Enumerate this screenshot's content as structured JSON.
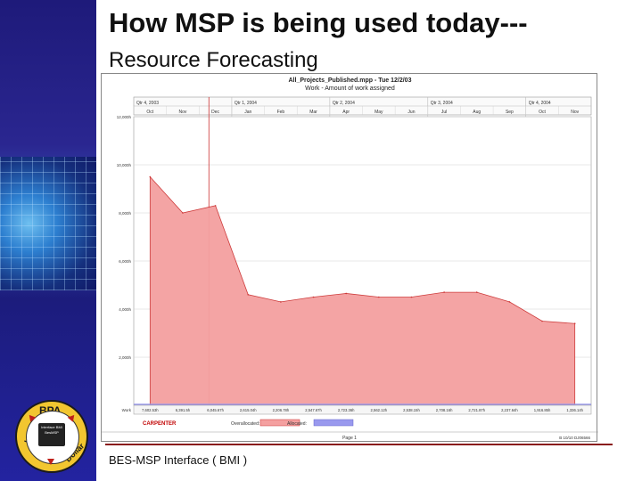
{
  "slide": {
    "title": "How MSP is being used today---",
    "subtitle": "Resource Forecasting",
    "footer": "BES-MSP Interface   ( BMI )"
  },
  "logo": {
    "top": "BPA",
    "left": "Indus",
    "right": "Dollar",
    "center": "Interface BMI BesMSP"
  },
  "colors": {
    "sidebar": "#1e1a7a",
    "area_fill": "#f4a0a0",
    "area_stroke": "#cc3333",
    "allocated_fill": "#9999ee",
    "rule": "#8a1c1c"
  },
  "chart_window": {
    "title": "All_Projects_Published.mpp - Tue 12/2/03",
    "subtitle": "Work - Amount of work assigned",
    "legend_resource": "CARPENTER",
    "legend_overallocated": "Overallocated:",
    "legend_allocated": "Allocated:",
    "footer_page": "Page 1",
    "footer_code": "B 10/10 DJ06566",
    "units_label": "Work"
  },
  "chart_data": {
    "type": "area",
    "title": "All_Projects_Published.mpp - Tue 12/2/03",
    "subtitle": "Work - Amount of work assigned",
    "quarters": [
      "Qtr 4, 2003",
      "Qtr 1, 2004",
      "Qtr 2, 2004",
      "Qtr 3, 2004",
      "Qtr 4, 2004"
    ],
    "categories": [
      "Oct",
      "Nov",
      "Dec",
      "Jan",
      "Feb",
      "Mar",
      "Apr",
      "May",
      "Jun",
      "Jul",
      "Aug",
      "Sep",
      "Oct",
      "Nov"
    ],
    "y_tick_labels": [
      "12,000h",
      "10,000h",
      "8,000h",
      "6,000h",
      "4,000h",
      "2,000h"
    ],
    "ylim": [
      0,
      12000
    ],
    "series": [
      {
        "name": "Overallocated",
        "values": [
          9500,
          8000,
          8300,
          4600,
          4300,
          4500,
          4650,
          4500,
          4500,
          4700,
          4700,
          4300,
          3500,
          3400
        ]
      }
    ],
    "totals": [
      "7,602.53h",
      "6,391.5h",
      "6,045.67h",
      "2,615.04h",
      "2,206.78h",
      "2,547.67h",
      "2,723.36h",
      "2,562.12h",
      "2,538.15h",
      "2,708.16h",
      "2,721.87h",
      "2,237.64h",
      "1,916.85h",
      "1,336.14h"
    ],
    "grid": true,
    "legend": "bottom"
  }
}
